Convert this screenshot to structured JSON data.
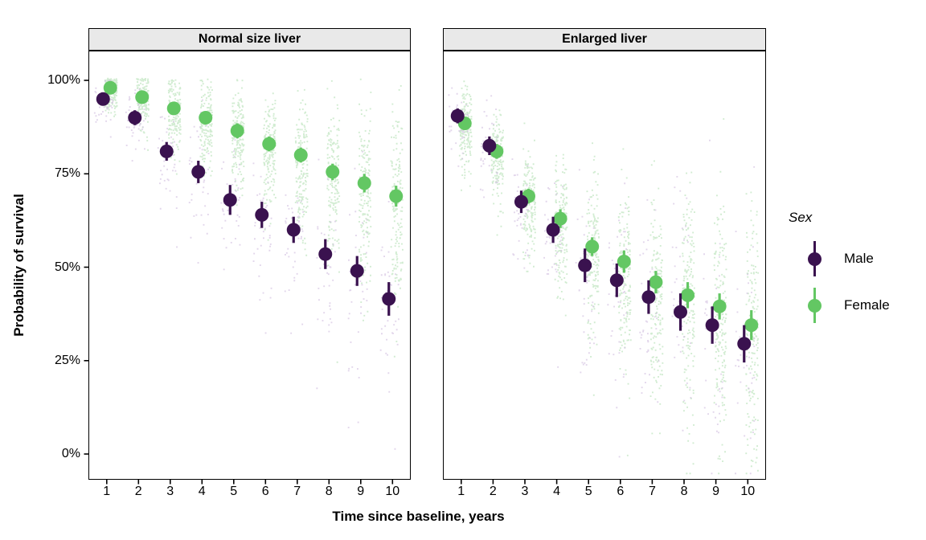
{
  "chart_data": {
    "type": "scatter",
    "subtype": "faceted pointrange with jittered posterior draws",
    "xlabel": "Time since baseline, years",
    "ylabel": "Probability of survival",
    "x": [
      1,
      2,
      3,
      4,
      5,
      6,
      7,
      8,
      9,
      10
    ],
    "ylim": [
      0,
      100
    ],
    "y_ticks": [
      {
        "value": 0,
        "label": "0%"
      },
      {
        "value": 25,
        "label": "25%"
      },
      {
        "value": 50,
        "label": "50%"
      },
      {
        "value": 75,
        "label": "75%"
      },
      {
        "value": 100,
        "label": "100%"
      }
    ],
    "grid": "off",
    "legend_position": "right",
    "legend": {
      "title": "Sex",
      "entries": [
        {
          "label": "Male",
          "color": "#3A124F"
        },
        {
          "label": "Female",
          "color": "#63C763"
        }
      ]
    },
    "colors": {
      "male": "#3A124F",
      "female": "#63C763",
      "male_jitter": "#CEBBDE",
      "female_jitter": "#ABDCAB",
      "strip_bg": "#E9E9E9",
      "panel_border": "#000000"
    },
    "facets": [
      {
        "title": "Normal size liver",
        "series": [
          {
            "name": "Male",
            "values": [
              95,
              90,
              81,
              75.5,
              68,
              64,
              60,
              53.5,
              49,
              41.5
            ],
            "err": [
              1.5,
              2,
              2.5,
              3,
              4,
              3.5,
              3.5,
              4,
              4,
              4.5
            ]
          },
          {
            "name": "Female",
            "values": [
              98,
              95.5,
              92.5,
              90,
              86.5,
              83,
              80,
              75.5,
              72.5,
              69
            ],
            "err": [
              1,
              1.2,
              1.5,
              1.5,
              2,
              2,
              2,
              2.2,
              2.5,
              2.8
            ]
          }
        ],
        "cloud_sd": {
          "male": [
            3,
            4.5,
            6,
            7,
            8,
            9,
            10,
            11,
            12,
            13
          ],
          "female": [
            2.5,
            3.5,
            4.5,
            5.5,
            6.5,
            7.5,
            8.5,
            9.5,
            10.5,
            11.5
          ]
        }
      },
      {
        "title": "Enlarged liver",
        "series": [
          {
            "name": "Male",
            "values": [
              90.5,
              82.5,
              67.5,
              60,
              50.5,
              46.5,
              42,
              38,
              34.5,
              29.5
            ],
            "err": [
              2,
              2.5,
              3,
              3.5,
              4.5,
              4.5,
              4.5,
              5,
              5,
              5
            ]
          },
          {
            "name": "Female",
            "values": [
              88.5,
              81,
              69,
              63,
              55.5,
              51.5,
              46,
              42.5,
              39.5,
              34.5
            ],
            "err": [
              1.5,
              2,
              2,
              2.5,
              2.5,
              3,
              3,
              3.5,
              3.5,
              4
            ]
          }
        ],
        "cloud_sd": {
          "male": [
            4.5,
            6,
            7.5,
            9,
            10.5,
            12,
            13.5,
            15,
            16,
            17
          ],
          "female": [
            5,
            5.5,
            7,
            8.5,
            10,
            11.5,
            13,
            14.5,
            15.5,
            16.5
          ]
        }
      }
    ],
    "draws": {
      "female_count": 170,
      "male_count": 40,
      "seed": 20240611
    }
  }
}
